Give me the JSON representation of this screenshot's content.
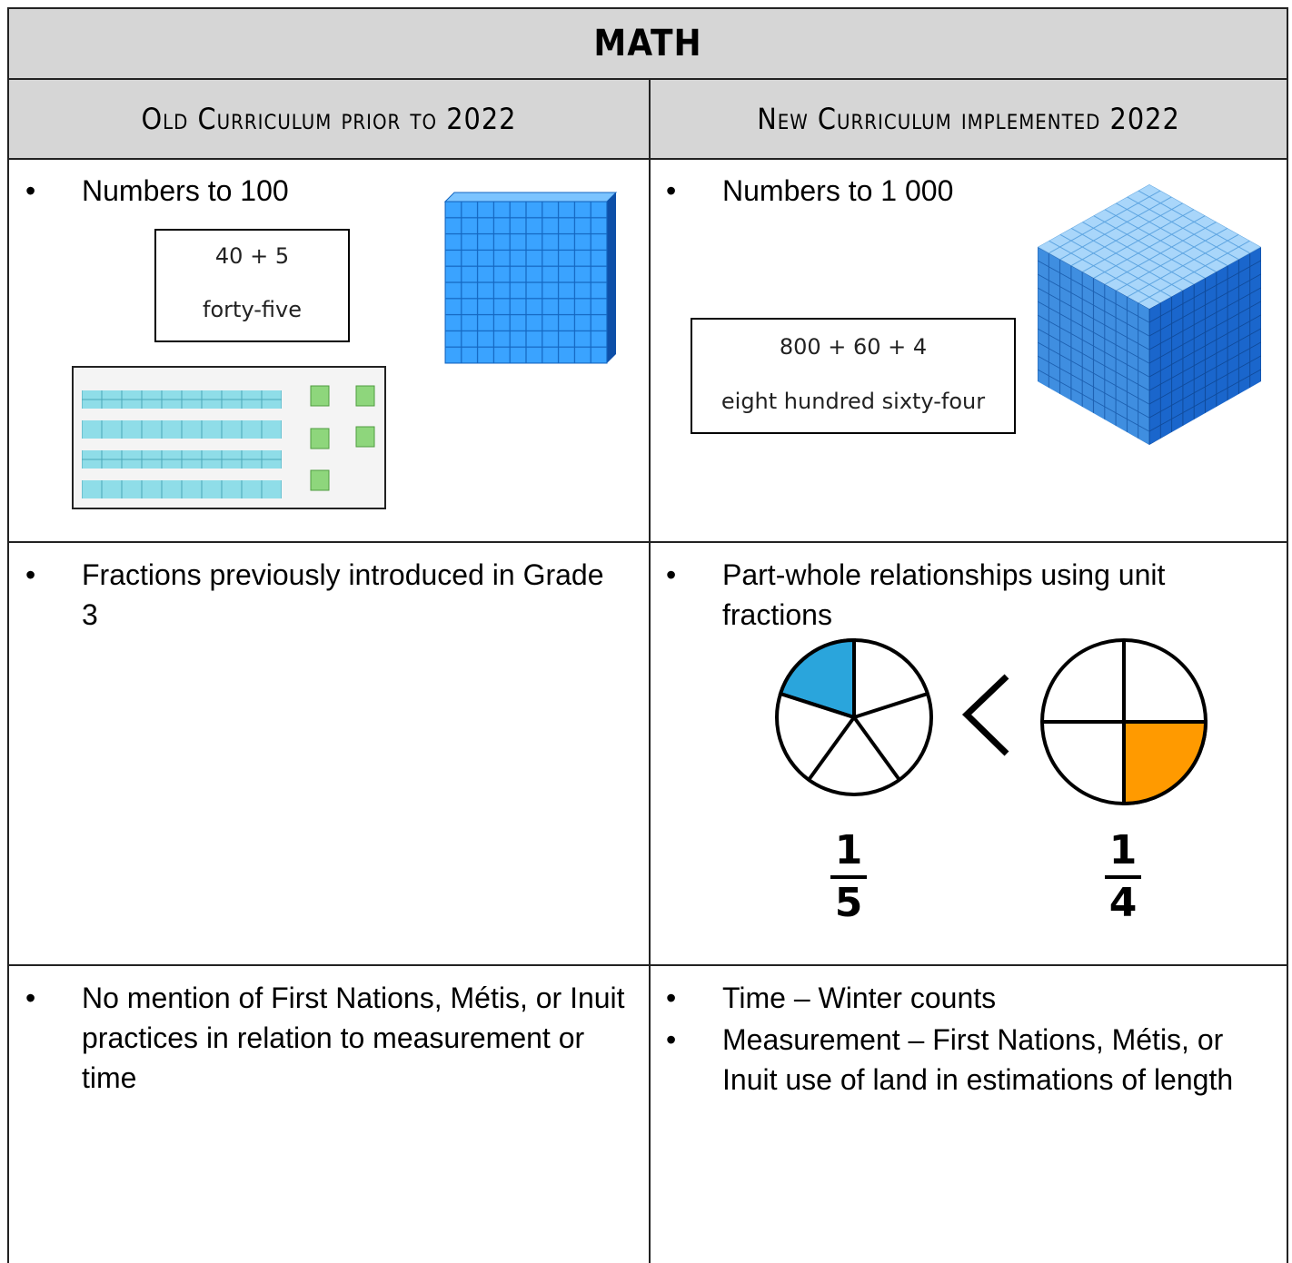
{
  "header": {
    "title": "MATH",
    "columns": [
      "Old Curriculum prior to 2022",
      "New Curriculum implemented 2022"
    ]
  },
  "rows": [
    {
      "old": {
        "bullets": [
          "Numbers to 100"
        ],
        "box": [
          "40 + 5",
          "forty-five"
        ]
      },
      "new": {
        "bullets": [
          "Numbers to 1 000"
        ],
        "box": [
          "800 + 60 + 4",
          "eight hundred sixty-four"
        ]
      }
    },
    {
      "old": {
        "bullets": [
          "Fractions previously introduced in Grade 3"
        ]
      },
      "new": {
        "bullets": [
          "Part-whole relationships using unit fractions"
        ],
        "fractions": [
          {
            "numerator": "1",
            "denominator": "5"
          },
          {
            "numerator": "1",
            "denominator": "4"
          }
        ]
      }
    },
    {
      "old": {
        "bullets": [
          "No mention of First Nations, Métis, or Inuit practices in relation to measurement or time"
        ]
      },
      "new": {
        "bullets": [
          "Time – Winter counts",
          "Measurement – First Nations, Métis, or Inuit use of land in estimations of length"
        ]
      }
    }
  ]
}
